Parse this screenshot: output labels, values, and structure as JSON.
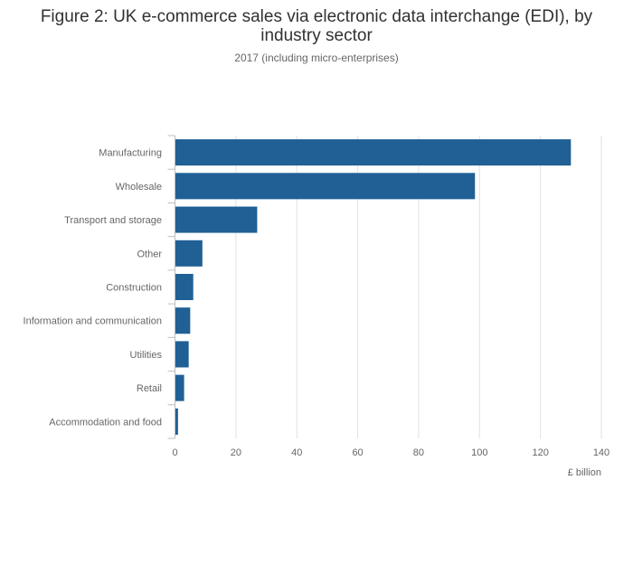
{
  "title": "Figure 2: UK e-commerce sales via electronic data interchange (EDI), by industry sector",
  "subtitle": "2017 (including micro-enterprises)",
  "chart_data": {
    "type": "bar",
    "orientation": "horizontal",
    "categories": [
      "Manufacturing",
      "Wholesale",
      "Transport and storage",
      "Other",
      "Construction",
      "Information and communication",
      "Utilities",
      "Retail",
      "Accommodation and food"
    ],
    "values": [
      130,
      98.5,
      27,
      9,
      6,
      5,
      4.5,
      3,
      1
    ],
    "xlabel": "£ billion",
    "ylabel": "",
    "xlim": [
      0,
      140
    ],
    "xticks": [
      0,
      20,
      40,
      60,
      80,
      100,
      120,
      140
    ],
    "grid": true,
    "bar_color": "#206095",
    "grid_color": "#e2e2e2",
    "axis_color": "#bebebe"
  }
}
